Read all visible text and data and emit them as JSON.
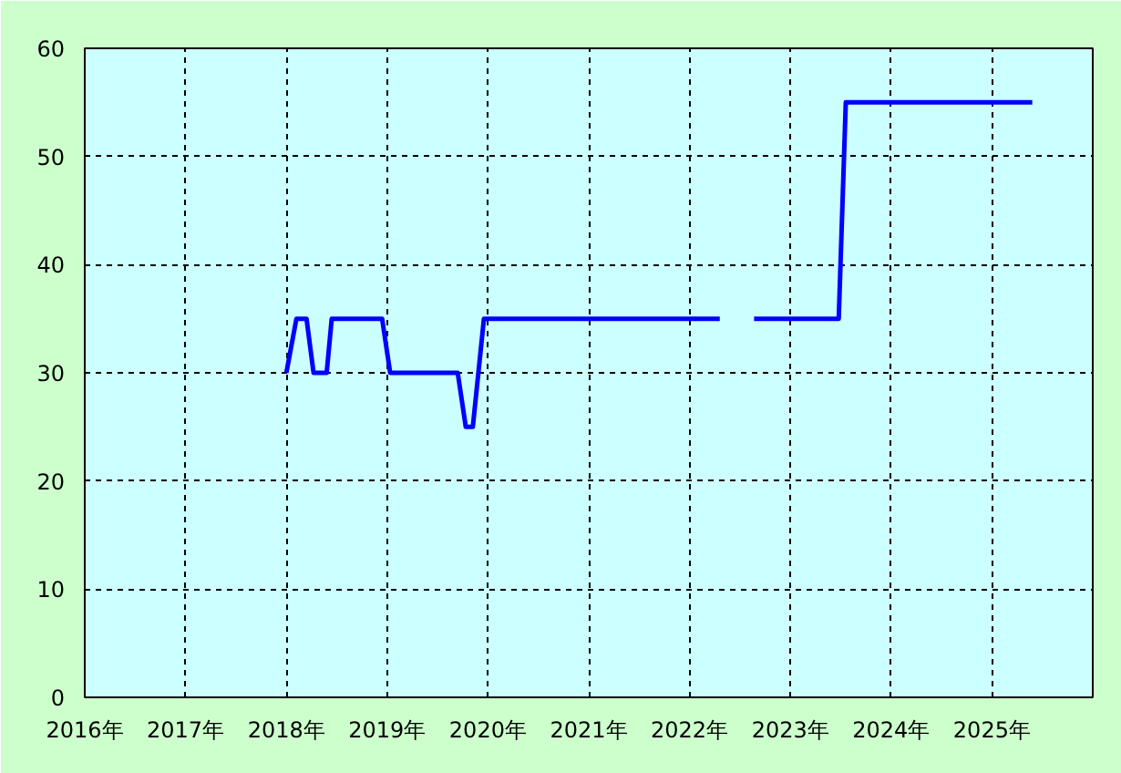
{
  "chart_data": {
    "type": "line",
    "x": [
      2018.0,
      2018.1,
      2018.2,
      2018.27,
      2018.4,
      2018.45,
      2018.95,
      2019.03,
      2019.7,
      2019.78,
      2019.85,
      2019.96,
      2022.3,
      2022.45,
      2022.64,
      2023.48,
      2023.55,
      2025.4
    ],
    "series": [
      {
        "color": "#0000ff",
        "values": [
          30,
          35,
          35,
          30,
          30,
          35,
          35,
          30,
          30,
          25,
          25,
          35,
          35,
          null,
          35,
          35,
          55,
          55
        ]
      }
    ],
    "xlim": [
      2016,
      2026
    ],
    "xticks": [
      {
        "value": 2016,
        "label": "2016年"
      },
      {
        "value": 2017,
        "label": "2017年"
      },
      {
        "value": 2018,
        "label": "2018年"
      },
      {
        "value": 2019,
        "label": "2019年"
      },
      {
        "value": 2020,
        "label": "2020年"
      },
      {
        "value": 2021,
        "label": "2021年"
      },
      {
        "value": 2022,
        "label": "2022年"
      },
      {
        "value": 2023,
        "label": "2023年"
      },
      {
        "value": 2024,
        "label": "2024年"
      },
      {
        "value": 2025,
        "label": "2025年"
      }
    ],
    "ylim": [
      0,
      60
    ],
    "yticks": [
      0,
      10,
      20,
      30,
      40,
      50,
      60
    ],
    "grid": true,
    "line_style": "solid"
  }
}
